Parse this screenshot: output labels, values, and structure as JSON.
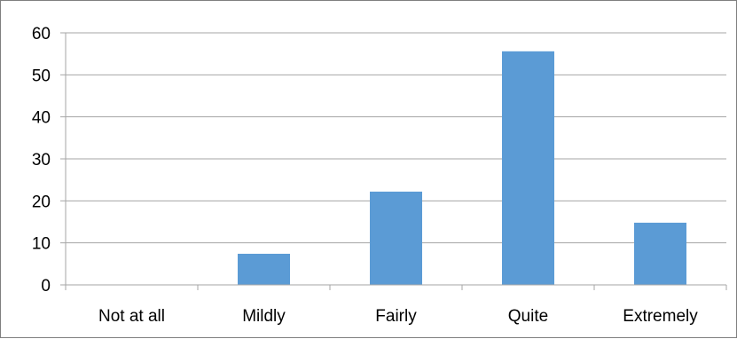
{
  "chart_data": {
    "type": "bar",
    "categories": [
      "Not at all",
      "Mildly",
      "Fairly",
      "Quite",
      "Extremely"
    ],
    "values": [
      0,
      7.4,
      22.2,
      55.6,
      14.8
    ],
    "title": "",
    "xlabel": "",
    "ylabel": "",
    "ylim": [
      0,
      60
    ],
    "yticks": [
      "0",
      "10",
      "20",
      "30",
      "40",
      "50",
      "60"
    ],
    "grid": true,
    "legend": "none",
    "bar_color": "#5b9bd5",
    "grid_color": "#a6a6a6",
    "axis_color": "#a6a6a6"
  }
}
